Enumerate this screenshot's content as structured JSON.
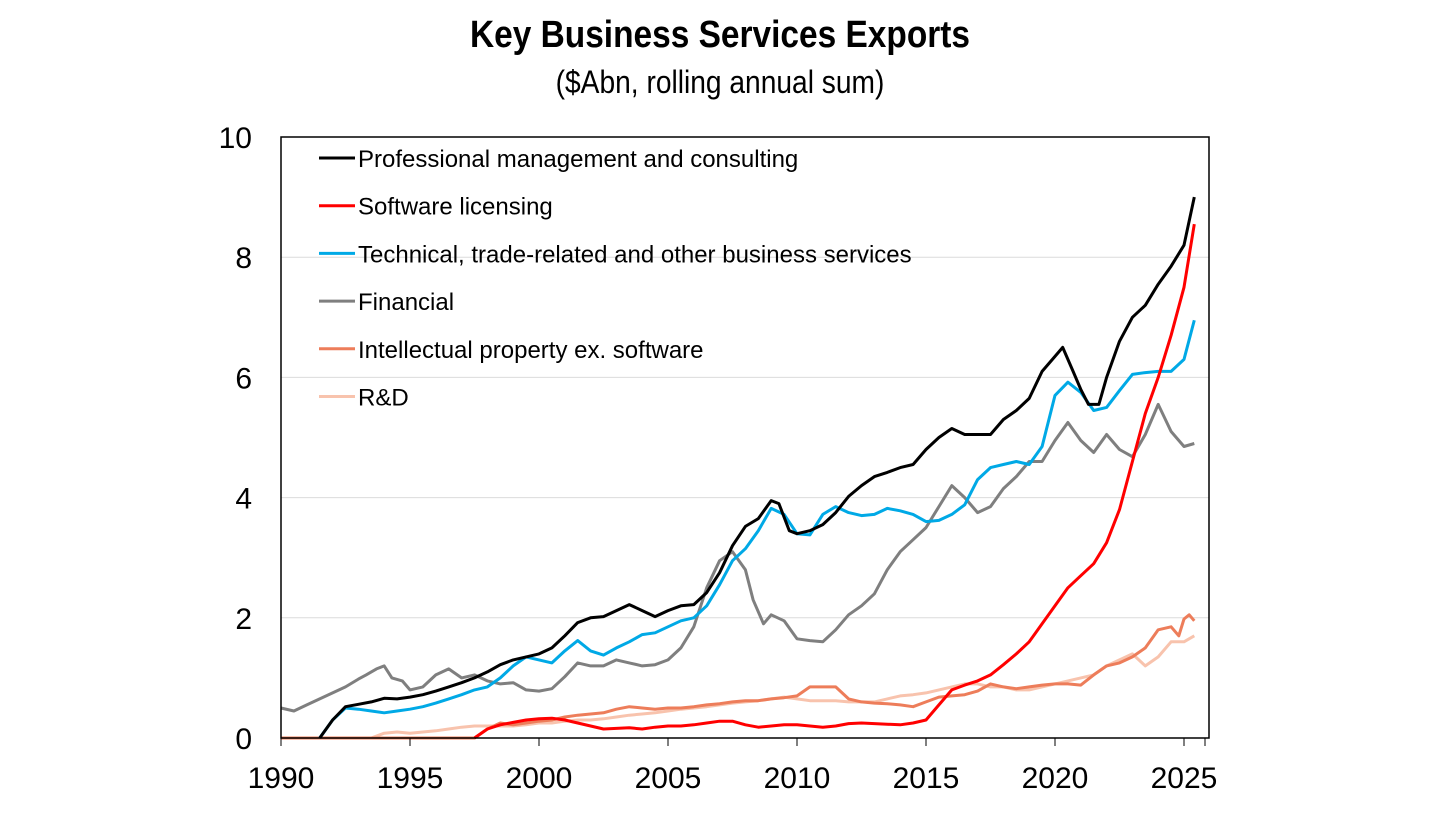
{
  "chart_data": {
    "type": "line",
    "title": "Key Business Services Exports",
    "subtitle": "($Abn, rolling annual sum)",
    "xlabel": "",
    "ylabel": "",
    "xlim": [
      1990,
      2026
    ],
    "ylim": [
      0,
      10
    ],
    "x_ticks": [
      1990,
      1995,
      2000,
      2005,
      2010,
      2015,
      2020,
      2025
    ],
    "x_tick_labels": [
      "1990",
      "1995",
      "2000",
      "2005",
      "2010",
      "2015",
      "2020",
      "2025"
    ],
    "y_ticks": [
      0,
      2,
      4,
      6,
      8,
      10
    ],
    "y_tick_labels": [
      "0",
      "2",
      "4",
      "6",
      "8",
      "10"
    ],
    "grid": "horizontal",
    "legend_position": "top-left",
    "series": [
      {
        "name": "Professional management and consulting",
        "color": "#000000",
        "x": [
          1991.5,
          1992.0,
          1992.5,
          1993.0,
          1993.5,
          1994.0,
          1994.5,
          1995.0,
          1995.5,
          1996.0,
          1996.5,
          1997.0,
          1997.5,
          1998.0,
          1998.5,
          1999.0,
          1999.5,
          2000.0,
          2000.5,
          2001.0,
          2001.5,
          2002.0,
          2002.5,
          2003.0,
          2003.5,
          2004.0,
          2004.5,
          2005.0,
          2005.5,
          2006.0,
          2006.5,
          2007.0,
          2007.5,
          2008.0,
          2008.5,
          2009.0,
          2009.3,
          2009.7,
          2010.0,
          2010.5,
          2011.0,
          2011.5,
          2012.0,
          2012.5,
          2013.0,
          2013.5,
          2014.0,
          2014.5,
          2015.0,
          2015.5,
          2016.0,
          2016.5,
          2017.0,
          2017.5,
          2018.0,
          2018.5,
          2019.0,
          2019.5,
          2020.0,
          2020.3,
          2020.7,
          2021.0,
          2021.3,
          2021.7,
          2022.0,
          2022.5,
          2023.0,
          2023.5,
          2024.0,
          2024.5,
          2025.0,
          2025.4
        ],
        "values": [
          0.0,
          0.3,
          0.52,
          0.56,
          0.6,
          0.66,
          0.65,
          0.68,
          0.72,
          0.78,
          0.85,
          0.92,
          1.0,
          1.1,
          1.22,
          1.3,
          1.35,
          1.4,
          1.5,
          1.7,
          1.92,
          2.0,
          2.02,
          2.12,
          2.22,
          2.12,
          2.02,
          2.12,
          2.2,
          2.22,
          2.42,
          2.75,
          3.2,
          3.52,
          3.65,
          3.95,
          3.9,
          3.45,
          3.4,
          3.45,
          3.55,
          3.75,
          4.02,
          4.2,
          4.35,
          4.42,
          4.5,
          4.55,
          4.8,
          5.0,
          5.15,
          5.05,
          5.05,
          5.05,
          5.3,
          5.45,
          5.65,
          6.1,
          6.35,
          6.5,
          6.1,
          5.8,
          5.55,
          5.55,
          6.0,
          6.6,
          7.0,
          7.2,
          7.55,
          7.85,
          8.2,
          9.0
        ]
      },
      {
        "name": "Software licensing",
        "color": "#ff0000",
        "x": [
          1997.5,
          1998.0,
          1998.5,
          1999.0,
          1999.5,
          2000.0,
          2000.5,
          2001.0,
          2001.5,
          2002.0,
          2002.5,
          2003.0,
          2003.5,
          2004.0,
          2004.5,
          2005.0,
          2005.5,
          2006.0,
          2006.5,
          2007.0,
          2007.5,
          2008.0,
          2008.5,
          2009.0,
          2009.5,
          2010.0,
          2010.5,
          2011.0,
          2011.5,
          2012.0,
          2012.5,
          2013.0,
          2013.5,
          2014.0,
          2014.5,
          2015.0,
          2015.5,
          2016.0,
          2016.5,
          2017.0,
          2017.5,
          2018.0,
          2018.5,
          2019.0,
          2019.5,
          2020.0,
          2020.5,
          2021.0,
          2021.5,
          2022.0,
          2022.5,
          2023.0,
          2023.5,
          2024.0,
          2024.5,
          2025.0,
          2025.4
        ],
        "values": [
          0.0,
          0.15,
          0.22,
          0.26,
          0.3,
          0.32,
          0.33,
          0.3,
          0.25,
          0.2,
          0.15,
          0.16,
          0.17,
          0.15,
          0.18,
          0.2,
          0.2,
          0.22,
          0.25,
          0.28,
          0.28,
          0.22,
          0.18,
          0.2,
          0.22,
          0.22,
          0.2,
          0.18,
          0.2,
          0.24,
          0.25,
          0.24,
          0.23,
          0.22,
          0.25,
          0.3,
          0.55,
          0.8,
          0.88,
          0.95,
          1.05,
          1.22,
          1.4,
          1.6,
          1.9,
          2.2,
          2.5,
          2.7,
          2.9,
          3.25,
          3.8,
          4.6,
          5.4,
          6.0,
          6.7,
          7.5,
          8.55
        ]
      },
      {
        "name": "Technical, trade-related and other business services",
        "color": "#00a9e6",
        "x": [
          1991.5,
          1992.0,
          1992.5,
          1993.0,
          1993.5,
          1994.0,
          1994.5,
          1995.0,
          1995.5,
          1996.0,
          1996.5,
          1997.0,
          1997.5,
          1998.0,
          1998.5,
          1999.0,
          1999.5,
          2000.0,
          2000.5,
          2001.0,
          2001.5,
          2002.0,
          2002.5,
          2003.0,
          2003.5,
          2004.0,
          2004.5,
          2005.0,
          2005.5,
          2006.0,
          2006.5,
          2007.0,
          2007.5,
          2008.0,
          2008.5,
          2009.0,
          2009.5,
          2010.0,
          2010.5,
          2011.0,
          2011.5,
          2012.0,
          2012.5,
          2013.0,
          2013.5,
          2014.0,
          2014.5,
          2015.0,
          2015.5,
          2016.0,
          2016.5,
          2017.0,
          2017.5,
          2018.0,
          2018.5,
          2019.0,
          2019.5,
          2020.0,
          2020.5,
          2021.0,
          2021.5,
          2022.0,
          2022.5,
          2023.0,
          2023.5,
          2024.0,
          2024.5,
          2025.0,
          2025.4
        ],
        "values": [
          0.0,
          0.3,
          0.5,
          0.48,
          0.45,
          0.42,
          0.45,
          0.48,
          0.52,
          0.58,
          0.65,
          0.72,
          0.8,
          0.85,
          1.0,
          1.2,
          1.35,
          1.3,
          1.25,
          1.45,
          1.62,
          1.45,
          1.38,
          1.5,
          1.6,
          1.72,
          1.75,
          1.85,
          1.95,
          2.0,
          2.2,
          2.55,
          2.95,
          3.15,
          3.45,
          3.82,
          3.72,
          3.4,
          3.38,
          3.72,
          3.85,
          3.75,
          3.7,
          3.72,
          3.82,
          3.78,
          3.72,
          3.6,
          3.62,
          3.72,
          3.88,
          4.3,
          4.5,
          4.55,
          4.6,
          4.55,
          4.85,
          5.7,
          5.92,
          5.75,
          5.45,
          5.5,
          5.78,
          6.05,
          6.08,
          6.1,
          6.1,
          6.3,
          6.95
        ]
      },
      {
        "name": "Financial",
        "color": "#7f7f7f",
        "x": [
          1990.0,
          1990.5,
          1991.0,
          1991.5,
          1992.0,
          1992.5,
          1993.0,
          1993.3,
          1993.7,
          1994.0,
          1994.3,
          1994.7,
          1995.0,
          1995.5,
          1996.0,
          1996.5,
          1997.0,
          1997.5,
          1998.0,
          1998.5,
          1999.0,
          1999.5,
          2000.0,
          2000.5,
          2001.0,
          2001.5,
          2002.0,
          2002.5,
          2003.0,
          2003.5,
          2004.0,
          2004.5,
          2005.0,
          2005.5,
          2006.0,
          2006.5,
          2007.0,
          2007.5,
          2008.0,
          2008.3,
          2008.7,
          2009.0,
          2009.5,
          2010.0,
          2010.5,
          2011.0,
          2011.5,
          2012.0,
          2012.5,
          2013.0,
          2013.5,
          2014.0,
          2014.5,
          2015.0,
          2015.5,
          2016.0,
          2016.5,
          2017.0,
          2017.5,
          2018.0,
          2018.5,
          2019.0,
          2019.5,
          2020.0,
          2020.5,
          2021.0,
          2021.5,
          2022.0,
          2022.5,
          2023.0,
          2023.5,
          2024.0,
          2024.5,
          2025.0,
          2025.4
        ],
        "values": [
          0.5,
          0.45,
          0.55,
          0.65,
          0.75,
          0.85,
          0.98,
          1.05,
          1.15,
          1.2,
          1.0,
          0.95,
          0.8,
          0.85,
          1.05,
          1.15,
          1.0,
          1.05,
          0.95,
          0.9,
          0.92,
          0.8,
          0.78,
          0.82,
          1.02,
          1.25,
          1.2,
          1.2,
          1.3,
          1.25,
          1.2,
          1.22,
          1.3,
          1.5,
          1.85,
          2.5,
          2.95,
          3.1,
          2.8,
          2.3,
          1.9,
          2.05,
          1.95,
          1.65,
          1.62,
          1.6,
          1.8,
          2.05,
          2.2,
          2.4,
          2.8,
          3.1,
          3.3,
          3.5,
          3.85,
          4.2,
          4.0,
          3.75,
          3.85,
          4.15,
          4.35,
          4.6,
          4.6,
          4.95,
          5.25,
          4.95,
          4.75,
          5.05,
          4.8,
          4.68,
          5.05,
          5.55,
          5.1,
          4.85,
          4.9
        ]
      },
      {
        "name": "Intellectual property ex. software",
        "color": "#ed7d5a",
        "x": [
          1990.0,
          1997.5,
          1998.0,
          1998.5,
          1999.0,
          1999.5,
          2000.0,
          2000.5,
          2001.0,
          2001.5,
          2002.0,
          2002.5,
          2003.0,
          2003.5,
          2004.0,
          2004.5,
          2005.0,
          2005.5,
          2006.0,
          2006.5,
          2007.0,
          2007.5,
          2008.0,
          2008.5,
          2009.0,
          2009.5,
          2010.0,
          2010.5,
          2011.0,
          2011.5,
          2012.0,
          2012.5,
          2013.0,
          2013.5,
          2014.0,
          2014.5,
          2015.0,
          2015.5,
          2016.0,
          2016.5,
          2017.0,
          2017.5,
          2018.0,
          2018.5,
          2019.0,
          2019.5,
          2020.0,
          2020.5,
          2021.0,
          2021.5,
          2022.0,
          2022.5,
          2023.0,
          2023.5,
          2024.0,
          2024.5,
          2024.8,
          2025.0,
          2025.2,
          2025.4
        ],
        "values": [
          0.0,
          0.0,
          0.15,
          0.25,
          0.22,
          0.25,
          0.28,
          0.3,
          0.35,
          0.38,
          0.4,
          0.42,
          0.48,
          0.52,
          0.5,
          0.48,
          0.5,
          0.5,
          0.52,
          0.55,
          0.57,
          0.6,
          0.62,
          0.62,
          0.65,
          0.67,
          0.7,
          0.85,
          0.85,
          0.85,
          0.65,
          0.6,
          0.58,
          0.57,
          0.55,
          0.52,
          0.6,
          0.68,
          0.7,
          0.72,
          0.78,
          0.9,
          0.85,
          0.82,
          0.85,
          0.88,
          0.9,
          0.9,
          0.88,
          1.05,
          1.2,
          1.25,
          1.35,
          1.5,
          1.8,
          1.85,
          1.7,
          1.98,
          2.05,
          1.95
        ]
      },
      {
        "name": "R&D",
        "color": "#f8c3ad",
        "x": [
          1990.0,
          1993.5,
          1994.0,
          1994.5,
          1995.0,
          1995.5,
          1996.0,
          1996.5,
          1997.0,
          1997.5,
          1998.0,
          1998.5,
          1999.0,
          1999.5,
          2000.0,
          2000.5,
          2001.0,
          2001.5,
          2002.0,
          2002.5,
          2003.0,
          2003.5,
          2004.0,
          2004.5,
          2005.0,
          2005.5,
          2006.0,
          2006.5,
          2007.0,
          2007.5,
          2008.0,
          2008.5,
          2009.0,
          2009.5,
          2010.0,
          2010.5,
          2011.0,
          2011.5,
          2012.0,
          2012.5,
          2013.0,
          2013.5,
          2014.0,
          2014.5,
          2015.0,
          2015.5,
          2016.0,
          2016.5,
          2017.0,
          2017.5,
          2018.0,
          2018.5,
          2019.0,
          2019.5,
          2020.0,
          2020.5,
          2021.0,
          2021.5,
          2022.0,
          2022.5,
          2023.0,
          2023.5,
          2024.0,
          2024.5,
          2025.0,
          2025.4
        ],
        "values": [
          0.0,
          0.0,
          0.08,
          0.1,
          0.08,
          0.1,
          0.12,
          0.15,
          0.18,
          0.2,
          0.2,
          0.2,
          0.2,
          0.22,
          0.25,
          0.25,
          0.28,
          0.3,
          0.3,
          0.32,
          0.35,
          0.38,
          0.4,
          0.42,
          0.45,
          0.48,
          0.5,
          0.52,
          0.55,
          0.58,
          0.6,
          0.62,
          0.65,
          0.68,
          0.65,
          0.62,
          0.62,
          0.62,
          0.6,
          0.6,
          0.6,
          0.65,
          0.7,
          0.72,
          0.75,
          0.8,
          0.85,
          0.9,
          0.9,
          0.85,
          0.85,
          0.8,
          0.8,
          0.85,
          0.9,
          0.95,
          1.0,
          1.05,
          1.2,
          1.3,
          1.4,
          1.2,
          1.35,
          1.6,
          1.6,
          1.7
        ]
      }
    ]
  }
}
